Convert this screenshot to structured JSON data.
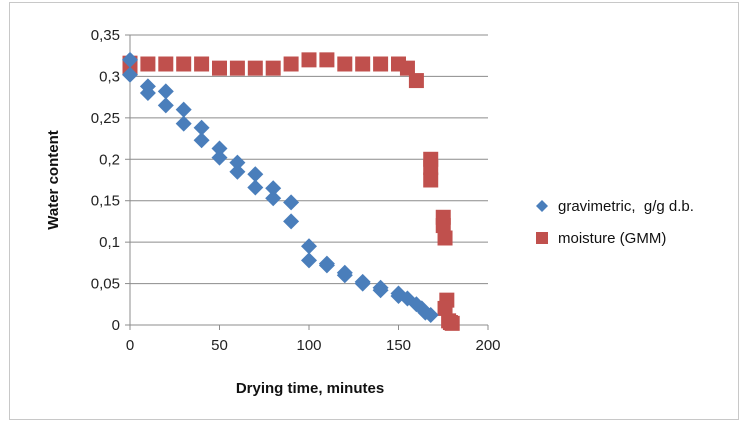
{
  "chart_data": {
    "type": "scatter",
    "title": "",
    "xlabel": "Drying time, minutes",
    "ylabel": "Water content",
    "xlim": [
      0,
      200
    ],
    "ylim": [
      0,
      0.35
    ],
    "x_ticks": [
      "0",
      "50",
      "100",
      "150",
      "200"
    ],
    "y_ticks": [
      "0",
      "0,05",
      "0,1",
      "0,15",
      "0,2",
      "0,25",
      "0,3",
      "0,35"
    ],
    "grid": "horizontal",
    "legend_position": "right",
    "series": [
      {
        "name": "gravimetric,  g/g d.b.",
        "marker": "diamond",
        "color": "#4a7ebb",
        "points": [
          [
            0,
            0.32
          ],
          [
            0,
            0.302
          ],
          [
            10,
            0.288
          ],
          [
            10,
            0.28
          ],
          [
            20,
            0.282
          ],
          [
            20,
            0.265
          ],
          [
            30,
            0.26
          ],
          [
            30,
            0.243
          ],
          [
            40,
            0.238
          ],
          [
            40,
            0.223
          ],
          [
            50,
            0.213
          ],
          [
            50,
            0.202
          ],
          [
            60,
            0.196
          ],
          [
            60,
            0.185
          ],
          [
            70,
            0.182
          ],
          [
            70,
            0.166
          ],
          [
            80,
            0.165
          ],
          [
            80,
            0.153
          ],
          [
            90,
            0.148
          ],
          [
            90,
            0.125
          ],
          [
            100,
            0.095
          ],
          [
            100,
            0.078
          ],
          [
            110,
            0.074
          ],
          [
            110,
            0.072
          ],
          [
            120,
            0.063
          ],
          [
            120,
            0.06
          ],
          [
            130,
            0.052
          ],
          [
            130,
            0.05
          ],
          [
            140,
            0.045
          ],
          [
            140,
            0.042
          ],
          [
            150,
            0.038
          ],
          [
            150,
            0.035
          ],
          [
            155,
            0.032
          ],
          [
            160,
            0.025
          ],
          [
            163,
            0.02
          ],
          [
            165,
            0.015
          ],
          [
            168,
            0.012
          ]
        ]
      },
      {
        "name": "moisture (GMM)",
        "marker": "square",
        "color": "#c0504d",
        "points": [
          [
            0,
            0.316
          ],
          [
            0,
            0.312
          ],
          [
            10,
            0.315
          ],
          [
            20,
            0.315
          ],
          [
            30,
            0.315
          ],
          [
            40,
            0.315
          ],
          [
            50,
            0.31
          ],
          [
            60,
            0.31
          ],
          [
            70,
            0.31
          ],
          [
            80,
            0.31
          ],
          [
            90,
            0.315
          ],
          [
            100,
            0.32
          ],
          [
            110,
            0.32
          ],
          [
            120,
            0.315
          ],
          [
            130,
            0.315
          ],
          [
            140,
            0.315
          ],
          [
            150,
            0.315
          ],
          [
            155,
            0.31
          ],
          [
            160,
            0.295
          ],
          [
            168,
            0.2
          ],
          [
            168,
            0.19
          ],
          [
            168,
            0.175
          ],
          [
            175,
            0.13
          ],
          [
            175,
            0.12
          ],
          [
            176,
            0.105
          ],
          [
            177,
            0.03
          ],
          [
            176,
            0.02
          ],
          [
            178,
            0.005
          ],
          [
            179,
            0.003
          ],
          [
            180,
            0.002
          ]
        ]
      }
    ]
  }
}
